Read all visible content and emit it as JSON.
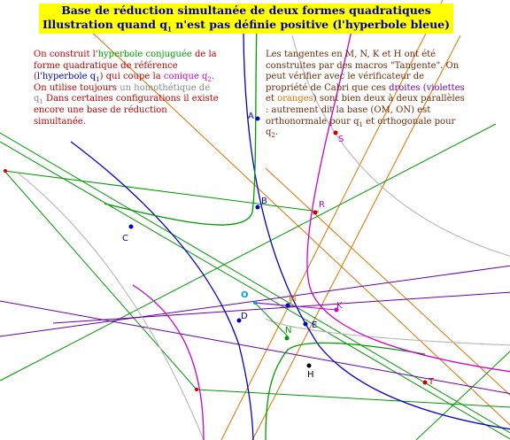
{
  "title": {
    "line1": "Base de réduction simultanée de deux formes quadratiques",
    "line2_before": "Illustration quand q",
    "line2_sub": "1",
    "line2_after": " n'est pas définie positive (l'hyperbole bleue)"
  },
  "note_left": {
    "t1": "On construit l'",
    "t2": "hyperbole conjuguée",
    "t3": " de la forme quadratique de référence (",
    "t4": "l'hyperbole q",
    "t4_sub": "1",
    "t5": ") qui coupe la ",
    "t6": "conique q",
    "t6_sub": "2",
    "t7": ". On utilise toujours ",
    "t8": "un homothétique de q",
    "t8_sub": "1",
    "t9": " Dans certaines configurations il existe encore une base de réduction simultanée."
  },
  "note_right": {
    "t1": "Les tangentes en M, N, K et H ont été construites par des macros \"Tangente\". On peut vérifier avec le vérificateur de propriété de Cabri que ces ",
    "t2": "droites (violettes",
    "t3": " et ",
    "t4": "oranges",
    "t5": ") sont bien deux à deux parallèles : autrement dit la base (OM, ON) est orthonormale pour q",
    "t5_sub": "1",
    "t6": " et orthogonale pour q",
    "t6_sub": "2",
    "t7": "."
  },
  "points": {
    "A": "A",
    "B": "B",
    "C": "C",
    "D": "D",
    "E": "E",
    "H": "H",
    "K": "K",
    "M": "M",
    "N": "N",
    "O": "O",
    "R": "R",
    "S": "S",
    "T": "T"
  },
  "colors": {
    "blue": "#0000cc",
    "green": "#009900",
    "magenta": "#cc00cc",
    "orange": "#e07000",
    "violet": "#6600aa",
    "gray": "#b0b0b0",
    "red_point": "#cc0000",
    "cyan": "#00a0e0",
    "title_bg": "#ffff00"
  }
}
